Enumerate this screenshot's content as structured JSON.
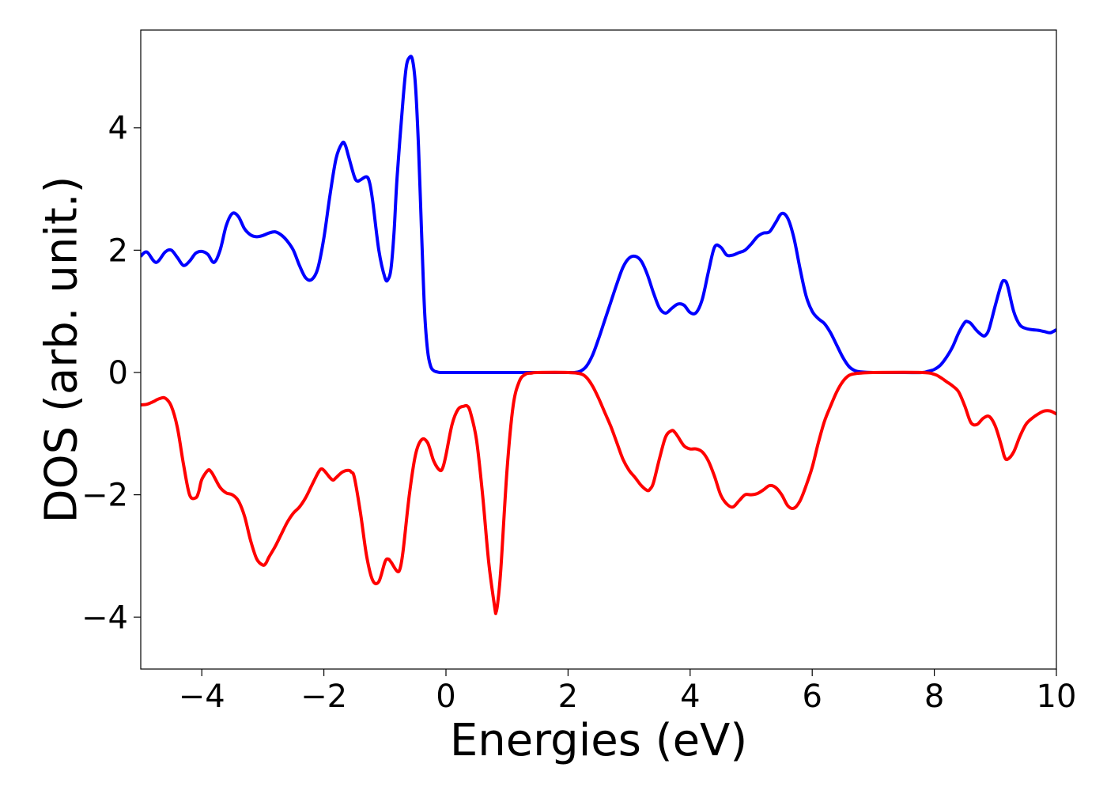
{
  "chart_data": {
    "type": "line",
    "title": "",
    "xlabel": "Energies (eV)",
    "ylabel": "DOS (arb. unit.)",
    "xlim": [
      -5,
      10
    ],
    "ylim": [
      -4.85,
      5.6
    ],
    "grid": false,
    "x_ticks": [
      {
        "value": -4,
        "label": "−4"
      },
      {
        "value": -2,
        "label": "−2"
      },
      {
        "value": 0,
        "label": "0"
      },
      {
        "value": 2,
        "label": "2"
      },
      {
        "value": 4,
        "label": "4"
      },
      {
        "value": 6,
        "label": "6"
      },
      {
        "value": 8,
        "label": "8"
      },
      {
        "value": 10,
        "label": "10"
      }
    ],
    "y_ticks": [
      {
        "value": -4,
        "label": "−4"
      },
      {
        "value": -2,
        "label": "−2"
      },
      {
        "value": 0,
        "label": "0"
      },
      {
        "value": 2,
        "label": "2"
      },
      {
        "value": 4,
        "label": "4"
      }
    ],
    "series": [
      {
        "color": "#0000ff",
        "x": [
          -5.0,
          -4.9,
          -4.75,
          -4.6,
          -4.5,
          -4.4,
          -4.3,
          -4.2,
          -4.1,
          -4.0,
          -3.9,
          -3.8,
          -3.7,
          -3.6,
          -3.5,
          -3.4,
          -3.3,
          -3.2,
          -3.1,
          -3.0,
          -2.9,
          -2.8,
          -2.7,
          -2.6,
          -2.5,
          -2.4,
          -2.3,
          -2.2,
          -2.1,
          -2.0,
          -1.9,
          -1.8,
          -1.7,
          -1.65,
          -1.6,
          -1.5,
          -1.45,
          -1.4,
          -1.3,
          -1.25,
          -1.2,
          -1.1,
          -1.0,
          -0.95,
          -0.9,
          -0.85,
          -0.8,
          -0.7,
          -0.65,
          -0.6,
          -0.55,
          -0.5,
          -0.45,
          -0.4,
          -0.35,
          -0.3,
          -0.25,
          -0.2,
          -0.15,
          -0.1,
          -0.05,
          0.0,
          0.2,
          0.5,
          1.0,
          1.5,
          2.0,
          2.1,
          2.2,
          2.3,
          2.4,
          2.5,
          2.6,
          2.7,
          2.8,
          2.9,
          3.0,
          3.1,
          3.2,
          3.3,
          3.4,
          3.5,
          3.6,
          3.7,
          3.8,
          3.9,
          4.0,
          4.1,
          4.2,
          4.3,
          4.4,
          4.5,
          4.6,
          4.7,
          4.8,
          4.9,
          5.0,
          5.1,
          5.2,
          5.3,
          5.4,
          5.5,
          5.6,
          5.7,
          5.8,
          5.9,
          6.0,
          6.1,
          6.2,
          6.3,
          6.4,
          6.5,
          6.6,
          6.7,
          6.8,
          7.0,
          7.5,
          7.8,
          7.9,
          8.0,
          8.1,
          8.2,
          8.3,
          8.4,
          8.5,
          8.55,
          8.6,
          8.7,
          8.8,
          8.85,
          8.9,
          9.0,
          9.1,
          9.15,
          9.2,
          9.3,
          9.4,
          9.5,
          9.6,
          9.7,
          9.8,
          9.9,
          10.0
        ],
        "y": [
          1.9,
          1.97,
          1.8,
          1.97,
          2.0,
          1.88,
          1.75,
          1.82,
          1.95,
          1.98,
          1.93,
          1.8,
          2.0,
          2.4,
          2.6,
          2.55,
          2.35,
          2.25,
          2.22,
          2.24,
          2.28,
          2.3,
          2.25,
          2.15,
          2.0,
          1.75,
          1.55,
          1.52,
          1.7,
          2.2,
          2.9,
          3.5,
          3.75,
          3.72,
          3.55,
          3.2,
          3.13,
          3.15,
          3.2,
          3.1,
          2.8,
          2.0,
          1.55,
          1.52,
          1.7,
          2.3,
          3.2,
          4.5,
          5.0,
          5.15,
          5.12,
          4.7,
          3.7,
          2.3,
          1.0,
          0.35,
          0.1,
          0.03,
          0.01,
          0.0,
          0.0,
          0.0,
          0.0,
          0.0,
          0.0,
          0.0,
          0.0,
          0.0,
          0.02,
          0.1,
          0.28,
          0.55,
          0.85,
          1.15,
          1.45,
          1.72,
          1.87,
          1.9,
          1.82,
          1.6,
          1.3,
          1.05,
          0.97,
          1.05,
          1.12,
          1.1,
          0.98,
          0.98,
          1.2,
          1.65,
          2.05,
          2.05,
          1.92,
          1.92,
          1.96,
          2.0,
          2.1,
          2.22,
          2.28,
          2.3,
          2.45,
          2.6,
          2.52,
          2.2,
          1.7,
          1.25,
          1.0,
          0.88,
          0.8,
          0.65,
          0.45,
          0.25,
          0.1,
          0.03,
          0.01,
          0.0,
          0.0,
          0.0,
          0.02,
          0.05,
          0.12,
          0.25,
          0.42,
          0.65,
          0.82,
          0.83,
          0.8,
          0.68,
          0.6,
          0.62,
          0.72,
          1.1,
          1.45,
          1.5,
          1.42,
          1.0,
          0.78,
          0.72,
          0.7,
          0.69,
          0.67,
          0.65,
          0.7
        ]
      },
      {
        "color": "#ff0000",
        "x": [
          -5.0,
          -4.9,
          -4.8,
          -4.7,
          -4.6,
          -4.5,
          -4.4,
          -4.3,
          -4.2,
          -4.1,
          -4.05,
          -4.0,
          -3.9,
          -3.85,
          -3.8,
          -3.7,
          -3.6,
          -3.5,
          -3.4,
          -3.3,
          -3.2,
          -3.1,
          -3.0,
          -2.95,
          -2.9,
          -2.8,
          -2.7,
          -2.6,
          -2.5,
          -2.4,
          -2.3,
          -2.2,
          -2.1,
          -2.05,
          -2.0,
          -1.9,
          -1.85,
          -1.8,
          -1.7,
          -1.6,
          -1.55,
          -1.5,
          -1.4,
          -1.3,
          -1.2,
          -1.1,
          -1.0,
          -0.95,
          -0.9,
          -0.8,
          -0.75,
          -0.7,
          -0.6,
          -0.5,
          -0.4,
          -0.3,
          -0.2,
          -0.1,
          -0.05,
          0.0,
          0.1,
          0.2,
          0.3,
          0.35,
          0.4,
          0.5,
          0.6,
          0.7,
          0.8,
          0.82,
          0.85,
          0.9,
          1.0,
          1.1,
          1.2,
          1.3,
          1.4,
          1.5,
          2.0,
          2.2,
          2.3,
          2.4,
          2.5,
          2.6,
          2.7,
          2.8,
          2.9,
          3.0,
          3.1,
          3.2,
          3.3,
          3.35,
          3.4,
          3.5,
          3.6,
          3.7,
          3.75,
          3.8,
          3.9,
          4.0,
          4.1,
          4.2,
          4.3,
          4.4,
          4.5,
          4.6,
          4.7,
          4.8,
          4.9,
          5.0,
          5.1,
          5.2,
          5.3,
          5.4,
          5.5,
          5.6,
          5.7,
          5.8,
          5.9,
          6.0,
          6.1,
          6.2,
          6.3,
          6.4,
          6.5,
          6.6,
          6.7,
          6.8,
          7.0,
          7.8,
          8.0,
          8.1,
          8.2,
          8.3,
          8.4,
          8.5,
          8.6,
          8.7,
          8.8,
          8.9,
          9.0,
          9.1,
          9.15,
          9.2,
          9.3,
          9.4,
          9.5,
          9.6,
          9.7,
          9.8,
          9.9,
          10.0
        ],
        "y": [
          -0.53,
          -0.52,
          -0.48,
          -0.43,
          -0.42,
          -0.55,
          -0.9,
          -1.5,
          -2.0,
          -2.05,
          -1.95,
          -1.75,
          -1.6,
          -1.62,
          -1.7,
          -1.88,
          -1.97,
          -2.0,
          -2.1,
          -2.35,
          -2.75,
          -3.05,
          -3.15,
          -3.12,
          -3.02,
          -2.85,
          -2.65,
          -2.45,
          -2.3,
          -2.2,
          -2.05,
          -1.85,
          -1.65,
          -1.58,
          -1.6,
          -1.72,
          -1.76,
          -1.72,
          -1.63,
          -1.6,
          -1.63,
          -1.72,
          -2.3,
          -3.0,
          -3.4,
          -3.42,
          -3.1,
          -3.05,
          -3.1,
          -3.25,
          -3.2,
          -2.9,
          -2.0,
          -1.35,
          -1.1,
          -1.15,
          -1.45,
          -1.6,
          -1.55,
          -1.35,
          -0.85,
          -0.6,
          -0.55,
          -0.55,
          -0.65,
          -1.1,
          -2.0,
          -3.1,
          -3.85,
          -3.92,
          -3.75,
          -3.2,
          -1.6,
          -0.55,
          -0.15,
          -0.03,
          -0.01,
          0.0,
          0.0,
          -0.02,
          -0.08,
          -0.22,
          -0.42,
          -0.65,
          -0.88,
          -1.15,
          -1.42,
          -1.6,
          -1.72,
          -1.85,
          -1.93,
          -1.9,
          -1.8,
          -1.4,
          -1.05,
          -0.95,
          -0.98,
          -1.05,
          -1.2,
          -1.25,
          -1.25,
          -1.3,
          -1.45,
          -1.7,
          -2.0,
          -2.15,
          -2.2,
          -2.1,
          -2.0,
          -2.0,
          -1.98,
          -1.92,
          -1.85,
          -1.88,
          -2.0,
          -2.18,
          -2.22,
          -2.1,
          -1.85,
          -1.55,
          -1.15,
          -0.8,
          -0.55,
          -0.32,
          -0.15,
          -0.05,
          -0.02,
          -0.01,
          0.0,
          0.0,
          -0.03,
          -0.08,
          -0.15,
          -0.22,
          -0.32,
          -0.55,
          -0.82,
          -0.85,
          -0.75,
          -0.72,
          -0.88,
          -1.2,
          -1.38,
          -1.42,
          -1.3,
          -1.05,
          -0.85,
          -0.75,
          -0.68,
          -0.63,
          -0.63,
          -0.68
        ]
      }
    ]
  }
}
